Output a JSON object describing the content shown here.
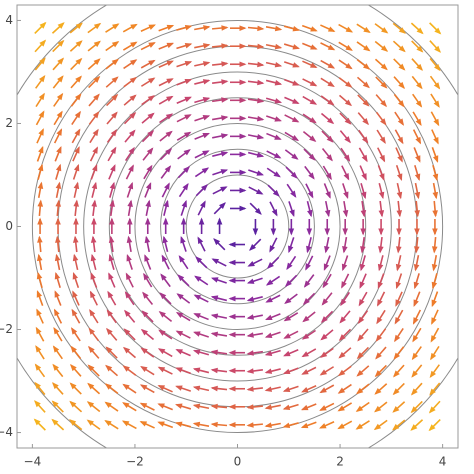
{
  "chart_data": {
    "type": "vector_field",
    "field": {
      "u": "y",
      "v": "-x"
    },
    "x": [
      -3.85,
      -3.5,
      -3.15,
      -2.8,
      -2.45,
      -2.1,
      -1.75,
      -1.4,
      -1.05,
      -0.7,
      -0.35,
      0,
      0.35,
      0.7,
      1.05,
      1.4,
      1.75,
      2.1,
      2.45,
      2.8,
      3.15,
      3.5,
      3.85
    ],
    "y": [
      -3.85,
      -3.5,
      -3.15,
      -2.8,
      -2.45,
      -2.1,
      -1.75,
      -1.4,
      -1.05,
      -0.7,
      -0.35,
      0,
      0.35,
      0.7,
      1.05,
      1.4,
      1.75,
      2.1,
      2.45,
      2.8,
      3.15,
      3.5,
      3.85
    ],
    "contour_radii": [
      1,
      1.5,
      2,
      2.5,
      3,
      3.5,
      4,
      5
    ],
    "contour_color": "#8a8a8a",
    "colormap": [
      "#4b1fa0",
      "#8a2aa0",
      "#c8456e",
      "#ee7a2a",
      "#f5b41e"
    ],
    "colormap_range": [
      0,
      5.4
    ],
    "xlim": [
      -4.3,
      4.3
    ],
    "ylim": [
      -4.3,
      4.3
    ],
    "xticks": [
      {
        "value": -4,
        "label": "−4"
      },
      {
        "value": -2,
        "label": "−2"
      },
      0,
      2,
      4
    ],
    "yticks": [
      {
        "value": -4,
        "label": "−4"
      },
      {
        "value": -2,
        "label": "−2"
      },
      0,
      2,
      4
    ]
  }
}
